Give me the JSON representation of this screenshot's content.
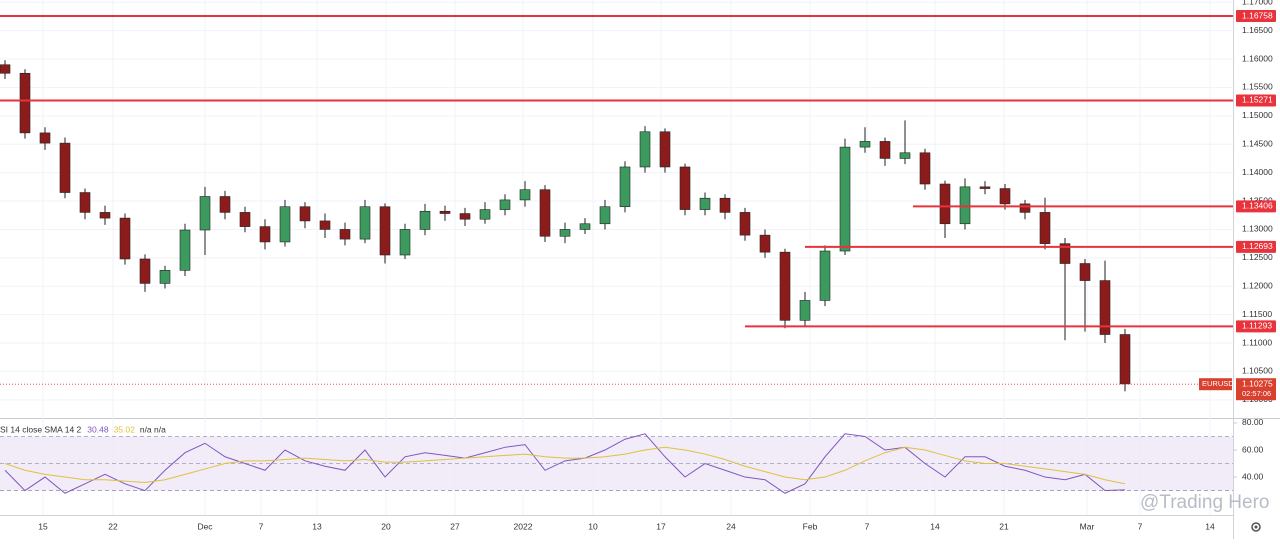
{
  "chart_data": [
    {
      "type": "candlestick",
      "symbol": "EURUSD",
      "countdown": "02:57:06",
      "up_color": "#3c9a5f",
      "down_color": "#8c1c1c",
      "level_color": "#e8323c",
      "grid": true,
      "open": [
        1.159,
        1.1575,
        1.147,
        1.1452,
        1.1365,
        1.133,
        1.132,
        1.1248,
        1.1205,
        1.1228,
        1.1299,
        1.1358,
        1.133,
        1.1305,
        1.1278,
        1.134,
        1.1315,
        1.13,
        1.1283,
        1.134,
        1.1255,
        1.13,
        1.1332,
        1.1328,
        1.1318,
        1.1335,
        1.1352,
        1.137,
        1.1288,
        1.13,
        1.131,
        1.134,
        1.141,
        1.1472,
        1.141,
        1.1335,
        1.1355,
        1.133,
        1.129,
        1.126,
        1.114,
        1.1175,
        1.1262,
        1.1445,
        1.1455,
        1.1425,
        1.1435,
        1.138,
        1.131,
        1.1375,
        1.1372,
        1.1345,
        1.133,
        1.1275,
        1.124,
        1.121,
        1.1115
      ],
      "high": [
        1.1598,
        1.1582,
        1.148,
        1.1462,
        1.1372,
        1.1342,
        1.1328,
        1.1256,
        1.1236,
        1.131,
        1.1375,
        1.1368,
        1.134,
        1.1318,
        1.1352,
        1.1348,
        1.1328,
        1.1312,
        1.1352,
        1.1346,
        1.131,
        1.1345,
        1.1342,
        1.1338,
        1.1348,
        1.1362,
        1.1385,
        1.1378,
        1.1312,
        1.132,
        1.1352,
        1.142,
        1.1482,
        1.1478,
        1.1416,
        1.1365,
        1.1362,
        1.1338,
        1.13,
        1.1266,
        1.119,
        1.1272,
        1.146,
        1.148,
        1.1462,
        1.1492,
        1.1442,
        1.1386,
        1.139,
        1.1385,
        1.138,
        1.1352,
        1.1356,
        1.1285,
        1.1248,
        1.1245,
        1.1125
      ],
      "low": [
        1.1565,
        1.146,
        1.144,
        1.1355,
        1.1318,
        1.1308,
        1.1238,
        1.119,
        1.1196,
        1.1218,
        1.1255,
        1.1318,
        1.1295,
        1.1265,
        1.127,
        1.1302,
        1.1285,
        1.1272,
        1.1276,
        1.124,
        1.1248,
        1.129,
        1.1315,
        1.1306,
        1.131,
        1.1325,
        1.134,
        1.1278,
        1.1276,
        1.1292,
        1.13,
        1.133,
        1.14,
        1.14,
        1.1325,
        1.1325,
        1.1318,
        1.128,
        1.125,
        1.1126,
        1.113,
        1.1165,
        1.1255,
        1.1435,
        1.1412,
        1.1415,
        1.137,
        1.1285,
        1.13,
        1.1362,
        1.1335,
        1.1318,
        1.1265,
        1.1105,
        1.112,
        1.11,
        1.1015
      ],
      "close": [
        1.1575,
        1.147,
        1.1452,
        1.1365,
        1.133,
        1.132,
        1.1248,
        1.1205,
        1.1228,
        1.1299,
        1.1358,
        1.133,
        1.1305,
        1.1278,
        1.134,
        1.1315,
        1.13,
        1.1283,
        1.134,
        1.1255,
        1.13,
        1.1332,
        1.1328,
        1.1318,
        1.1335,
        1.1352,
        1.137,
        1.1288,
        1.13,
        1.131,
        1.134,
        1.141,
        1.1472,
        1.141,
        1.1335,
        1.1355,
        1.133,
        1.129,
        1.126,
        1.114,
        1.1175,
        1.1262,
        1.1445,
        1.1455,
        1.1425,
        1.1435,
        1.138,
        1.131,
        1.1375,
        1.1372,
        1.1345,
        1.133,
        1.1275,
        1.124,
        1.121,
        1.1115,
        1.1028
      ],
      "levels": [
        1.16758,
        1.15271,
        1.13406,
        1.12693,
        1.11293
      ],
      "last_price": 1.10275,
      "ylim": [
        1.0968,
        1.1704
      ],
      "yticks": [
        {
          "value": 1.17,
          "label": "1.17000"
        },
        {
          "value": 1.165,
          "label": "1.16500"
        },
        {
          "value": 1.16,
          "label": "1.16000"
        },
        {
          "value": 1.155,
          "label": "1.15500"
        },
        {
          "value": 1.15,
          "label": "1.15000"
        },
        {
          "value": 1.145,
          "label": "1.14500"
        },
        {
          "value": 1.14,
          "label": "1.14000"
        },
        {
          "value": 1.135,
          "label": "1.13500"
        },
        {
          "value": 1.13,
          "label": "1.13000"
        },
        {
          "value": 1.125,
          "label": "1.12500"
        },
        {
          "value": 1.12,
          "label": "1.12000"
        },
        {
          "value": 1.115,
          "label": "1.11500"
        },
        {
          "value": 1.11,
          "label": "1.11000"
        },
        {
          "value": 1.105,
          "label": "1.10500"
        },
        {
          "value": 1.1,
          "label": "1.10000"
        }
      ],
      "time_labels": [
        "15",
        "22",
        "Dec",
        "7",
        "13",
        "20",
        "27",
        "2022",
        "10",
        "17",
        "24",
        "Feb",
        "7",
        "14",
        "21",
        "Mar",
        "7",
        "14"
      ]
    },
    {
      "type": "line",
      "title": "SI 14 close SMA 14 2",
      "trailing": "n/a n/a",
      "series": [
        {
          "name": "RSI",
          "color": "#7e57c2",
          "last": 30.48,
          "values": [
            45,
            30,
            40,
            28,
            35,
            42,
            35,
            30,
            45,
            58,
            65,
            55,
            50,
            45,
            60,
            52,
            48,
            45,
            60,
            40,
            55,
            58,
            56,
            54,
            58,
            62,
            64,
            45,
            52,
            54,
            60,
            68,
            72,
            55,
            40,
            50,
            45,
            40,
            38,
            28,
            35,
            55,
            72,
            70,
            60,
            62,
            50,
            40,
            55,
            55,
            48,
            45,
            40,
            38,
            42,
            30,
            30.48
          ]
        },
        {
          "name": "SMA",
          "color": "#e0c040",
          "last": 35.02,
          "values": [
            50,
            45,
            42,
            40,
            38,
            38,
            37,
            36,
            38,
            42,
            46,
            50,
            52,
            52,
            53,
            54,
            53,
            52,
            53,
            51,
            51,
            52,
            53,
            54,
            55,
            56,
            57,
            55,
            54,
            54,
            55,
            57,
            60,
            62,
            60,
            57,
            53,
            48,
            44,
            40,
            38,
            40,
            45,
            52,
            58,
            62,
            60,
            56,
            52,
            50,
            50,
            48,
            46,
            44,
            42,
            38,
            35.02
          ]
        }
      ],
      "band": [
        30,
        70
      ],
      "middle": 50,
      "ylim": [
        11.9,
        83.7
      ],
      "yticks": [
        {
          "value": 80,
          "label": "80.00"
        },
        {
          "value": 60,
          "label": "60.00"
        },
        {
          "value": 40,
          "label": "40.00"
        }
      ]
    }
  ],
  "watermark": "@Trading Hero"
}
